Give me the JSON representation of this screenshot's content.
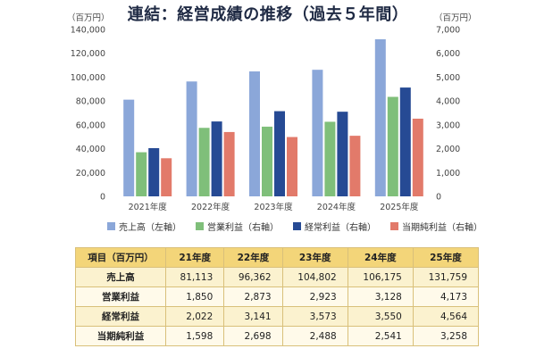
{
  "title": "連結：経営成績の推移（過去５年間）",
  "chart_data": {
    "type": "bar",
    "categories": [
      "2021年度",
      "2022年度",
      "2023年度",
      "2024年度",
      "2025年度"
    ],
    "left_axis": {
      "unit": "（百万円）",
      "ylim": [
        0,
        140000
      ],
      "ticks": [
        "0",
        "20,000",
        "40,000",
        "60,000",
        "80,000",
        "100,000",
        "120,000",
        "140,000"
      ]
    },
    "right_axis": {
      "unit": "（百万円）",
      "ylim": [
        0,
        7000
      ],
      "ticks": [
        "0",
        "1,000",
        "2,000",
        "3,000",
        "4,000",
        "5,000",
        "6,000",
        "7,000"
      ]
    },
    "series": [
      {
        "name": "売上高（左軸）",
        "axis": "left",
        "color": "#8ba7d9",
        "values": [
          81113,
          96362,
          104802,
          106175,
          131759
        ]
      },
      {
        "name": "営業利益（右軸）",
        "axis": "right",
        "color": "#7fbf7a",
        "values": [
          1850,
          2873,
          2923,
          3128,
          4173
        ]
      },
      {
        "name": "経常利益（右軸）",
        "axis": "right",
        "color": "#264a94",
        "values": [
          2022,
          3141,
          3573,
          3550,
          4564
        ]
      },
      {
        "name": "当期純利益（右軸）",
        "axis": "right",
        "color": "#e27a6a",
        "values": [
          1598,
          2698,
          2488,
          2541,
          3258
        ]
      }
    ],
    "legend_position": "bottom",
    "grid": false
  },
  "table": {
    "headers": [
      "項目（百万円）",
      "21年度",
      "22年度",
      "23年度",
      "24年度",
      "25年度"
    ],
    "rows": [
      {
        "label": "売上高",
        "cells": [
          "81,113",
          "96,362",
          "104,802",
          "106,175",
          "131,759"
        ]
      },
      {
        "label": "営業利益",
        "cells": [
          "1,850",
          "2,873",
          "2,923",
          "3,128",
          "4,173"
        ]
      },
      {
        "label": "経常利益",
        "cells": [
          "2,022",
          "3,141",
          "3,573",
          "3,550",
          "4,564"
        ]
      },
      {
        "label": "当期純利益",
        "cells": [
          "1,598",
          "2,698",
          "2,488",
          "2,541",
          "3,258"
        ]
      }
    ]
  }
}
